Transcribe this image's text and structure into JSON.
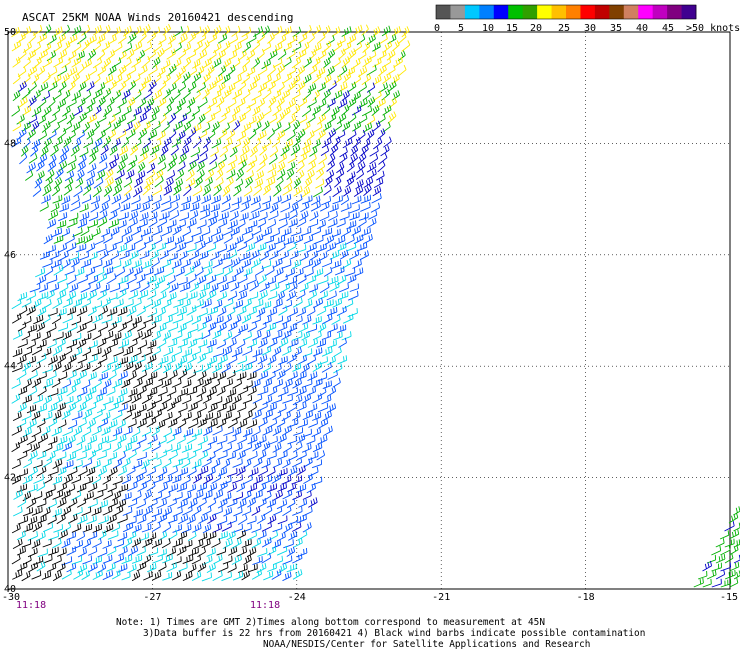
{
  "header": {
    "title": "ASCAT 25KM NOAA Winds 20160421 descending"
  },
  "legend": {
    "colors": [
      "#555555",
      "#999999",
      "#00c8ff",
      "#0080ff",
      "#0000ff",
      "#00c000",
      "#30a000",
      "#ffff00",
      "#ffc000",
      "#ff8000",
      "#ff0000",
      "#c00000",
      "#804000",
      "#d08060",
      "#ff00ff",
      "#c000c0",
      "#800080",
      "#400090"
    ],
    "labels": [
      "0",
      "5",
      "10",
      "15",
      "20",
      "25",
      "30",
      "35",
      "40",
      "45",
      ">50 knots"
    ]
  },
  "axes": {
    "lat_ticks": [
      "50",
      "48",
      "46",
      "44",
      "42",
      "40"
    ],
    "lon_ticks": [
      "-30",
      "-27",
      "-24",
      "-21",
      "-18",
      "-15"
    ],
    "lat_range": [
      40,
      50
    ],
    "lon_range": [
      -30,
      -15
    ]
  },
  "times": [
    "11:18",
    "11:18"
  ],
  "notes": {
    "line1": "Note: 1) Times are GMT 2)Times along bottom correspond to measurement at 45N",
    "line2": "3)Data buffer is 22 hrs from 20160421 4) Black wind barbs indicate possible contamination",
    "line3": "NOAA/NESDIS/Center for Satellite Applications and Research"
  },
  "speed_colors": {
    "black": "#000000",
    "cyan": "#00d8e8",
    "blue": "#0050ff",
    "darkblue": "#0000c8",
    "green": "#00b000",
    "yellow": "#ffe800"
  }
}
